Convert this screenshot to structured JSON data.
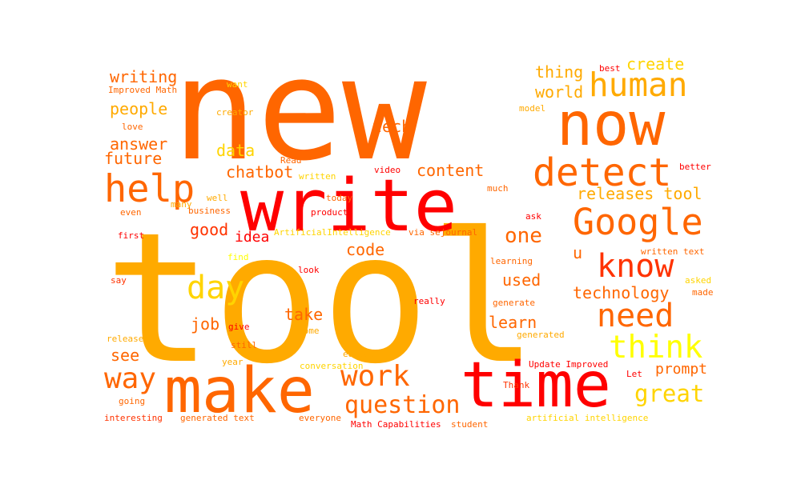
{
  "palette": {
    "orange": "#ff6600",
    "amber": "#ffaa00",
    "red": "#ff0000",
    "gold": "#ffd400",
    "yellow": "#ffff00",
    "red_orange": "#ff3300"
  },
  "words": [
    {
      "text": "new",
      "color": "orange"
    },
    {
      "text": "tool",
      "color": "amber"
    },
    {
      "text": "write",
      "color": "red"
    },
    {
      "text": "make",
      "color": "orange"
    },
    {
      "text": "time",
      "color": "red"
    },
    {
      "text": "now",
      "color": "orange"
    },
    {
      "text": "detect",
      "color": "orange"
    },
    {
      "text": "Google",
      "color": "orange"
    },
    {
      "text": "help",
      "color": "orange"
    },
    {
      "text": "know",
      "color": "red_orange"
    },
    {
      "text": "human",
      "color": "amber"
    },
    {
      "text": "need",
      "color": "orange"
    },
    {
      "text": "think",
      "color": "yellow"
    },
    {
      "text": "day",
      "color": "gold"
    },
    {
      "text": "work",
      "color": "orange"
    },
    {
      "text": "way",
      "color": "orange"
    },
    {
      "text": "question",
      "color": "orange"
    },
    {
      "text": "great",
      "color": "gold"
    },
    {
      "text": "one",
      "color": "orange"
    },
    {
      "text": "technology",
      "color": "orange"
    },
    {
      "text": "releases tool",
      "color": "amber"
    },
    {
      "text": "content",
      "color": "orange"
    },
    {
      "text": "chatbot",
      "color": "orange"
    },
    {
      "text": "tech",
      "color": "orange"
    },
    {
      "text": "thing",
      "color": "amber"
    },
    {
      "text": "world",
      "color": "amber"
    },
    {
      "text": "create",
      "color": "gold"
    },
    {
      "text": "writing",
      "color": "orange"
    },
    {
      "text": "people",
      "color": "amber"
    },
    {
      "text": "answer",
      "color": "orange"
    },
    {
      "text": "future",
      "color": "orange"
    },
    {
      "text": "data",
      "color": "gold"
    },
    {
      "text": "good",
      "color": "red_orange"
    },
    {
      "text": "idea",
      "color": "red"
    },
    {
      "text": "code",
      "color": "orange"
    },
    {
      "text": "used",
      "color": "orange"
    },
    {
      "text": "take",
      "color": "orange"
    },
    {
      "text": "learn",
      "color": "orange"
    },
    {
      "text": "job",
      "color": "orange"
    },
    {
      "text": "see",
      "color": "orange"
    },
    {
      "text": "prompt",
      "color": "orange"
    },
    {
      "text": "u",
      "color": "orange"
    },
    {
      "text": "want",
      "color": "gold"
    },
    {
      "text": "Improved Math",
      "color": "orange"
    },
    {
      "text": "creator",
      "color": "amber"
    },
    {
      "text": "love",
      "color": "orange"
    },
    {
      "text": "best",
      "color": "red"
    },
    {
      "text": "model",
      "color": "amber"
    },
    {
      "text": "Read",
      "color": "orange"
    },
    {
      "text": "video",
      "color": "red"
    },
    {
      "text": "written",
      "color": "gold"
    },
    {
      "text": "better",
      "color": "red"
    },
    {
      "text": "well",
      "color": "amber"
    },
    {
      "text": "many",
      "color": "amber"
    },
    {
      "text": "today",
      "color": "orange"
    },
    {
      "text": "much",
      "color": "orange"
    },
    {
      "text": "even",
      "color": "orange"
    },
    {
      "text": "business",
      "color": "orange"
    },
    {
      "text": "product",
      "color": "red"
    },
    {
      "text": "ask",
      "color": "red"
    },
    {
      "text": "first",
      "color": "red"
    },
    {
      "text": "ArtificialIntelligence",
      "color": "gold"
    },
    {
      "text": "via sejournal",
      "color": "orange"
    },
    {
      "text": "written text",
      "color": "orange"
    },
    {
      "text": "find",
      "color": "yellow"
    },
    {
      "text": "learning",
      "color": "orange"
    },
    {
      "text": "look",
      "color": "red"
    },
    {
      "text": "say",
      "color": "red_orange"
    },
    {
      "text": "asked",
      "color": "gold"
    },
    {
      "text": "made",
      "color": "orange"
    },
    {
      "text": "really",
      "color": "red"
    },
    {
      "text": "generate",
      "color": "orange"
    },
    {
      "text": "give",
      "color": "red"
    },
    {
      "text": "come",
      "color": "amber"
    },
    {
      "text": "generated",
      "color": "amber"
    },
    {
      "text": "released",
      "color": "amber"
    },
    {
      "text": "still",
      "color": "orange"
    },
    {
      "text": "education",
      "color": "amber"
    },
    {
      "text": "year",
      "color": "amber"
    },
    {
      "text": "conversation",
      "color": "gold"
    },
    {
      "text": "Update Improved",
      "color": "red"
    },
    {
      "text": "Let",
      "color": "red"
    },
    {
      "text": "going",
      "color": "orange"
    },
    {
      "text": "Thank",
      "color": "red_orange"
    },
    {
      "text": "interesting",
      "color": "red_orange"
    },
    {
      "text": "generated text",
      "color": "orange"
    },
    {
      "text": "everyone",
      "color": "orange"
    },
    {
      "text": "Math Capabilities",
      "color": "red"
    },
    {
      "text": "student",
      "color": "orange"
    },
    {
      "text": "artificial intelligence",
      "color": "gold"
    }
  ]
}
